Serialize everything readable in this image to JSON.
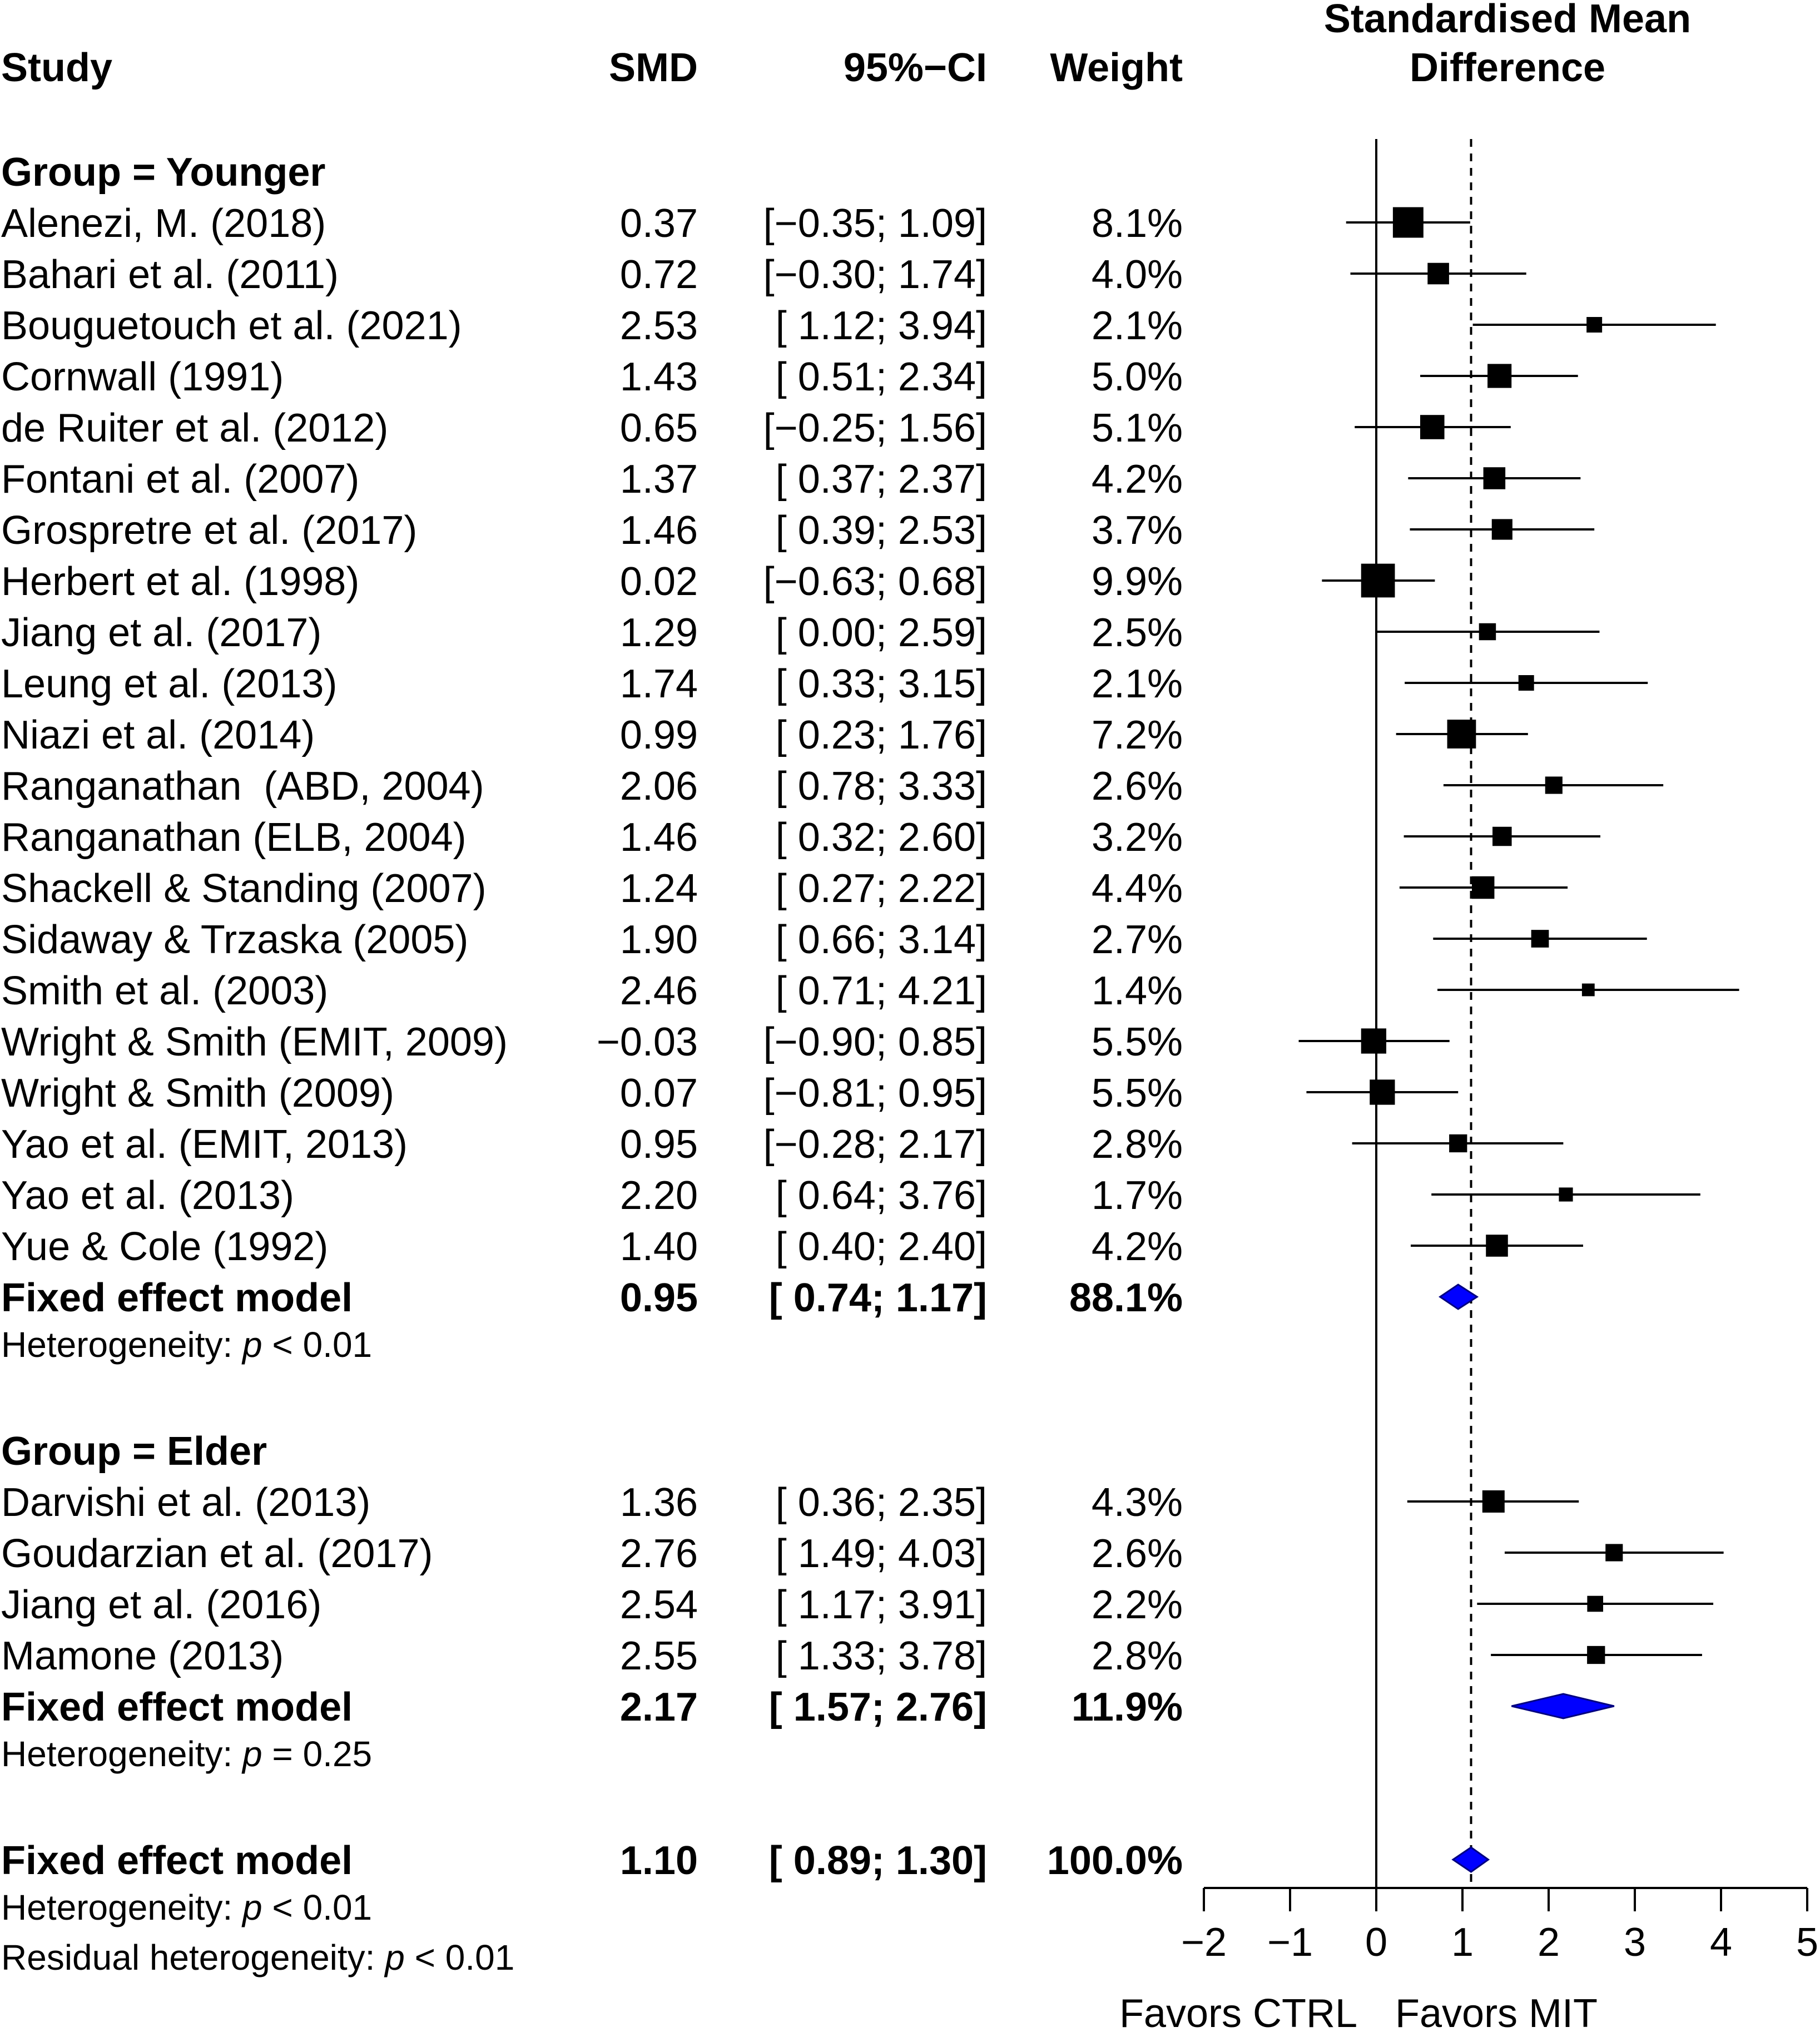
{
  "chart_data": {
    "type": "forest",
    "headers": {
      "study": "Study",
      "smd": "SMD",
      "ci": "95%−CI",
      "weight": "Weight",
      "plot_title_line1": "Standardised Mean",
      "plot_title_line2": "Difference"
    },
    "groups": [
      {
        "label": "Group = Younger",
        "studies": [
          {
            "name": "Alenezi, M. (2018)",
            "smd": 0.37,
            "lo": -0.35,
            "hi": 1.09,
            "smd_text": "0.37",
            "ci_text": "[−0.35; 1.09]",
            "weight_text": "8.1%",
            "weight": 8.1
          },
          {
            "name": "Bahari et al. (2011)",
            "smd": 0.72,
            "lo": -0.3,
            "hi": 1.74,
            "smd_text": "0.72",
            "ci_text": "[−0.30; 1.74]",
            "weight_text": "4.0%",
            "weight": 4.0
          },
          {
            "name": "Bouguetouch et al. (2021)",
            "smd": 2.53,
            "lo": 1.12,
            "hi": 3.94,
            "smd_text": "2.53",
            "ci_text": "[ 1.12; 3.94]",
            "weight_text": "2.1%",
            "weight": 2.1
          },
          {
            "name": "Cornwall (1991)",
            "smd": 1.43,
            "lo": 0.51,
            "hi": 2.34,
            "smd_text": "1.43",
            "ci_text": "[ 0.51; 2.34]",
            "weight_text": "5.0%",
            "weight": 5.0
          },
          {
            "name": "de Ruiter et al. (2012)",
            "smd": 0.65,
            "lo": -0.25,
            "hi": 1.56,
            "smd_text": "0.65",
            "ci_text": "[−0.25; 1.56]",
            "weight_text": "5.1%",
            "weight": 5.1
          },
          {
            "name": "Fontani et al. (2007)",
            "smd": 1.37,
            "lo": 0.37,
            "hi": 2.37,
            "smd_text": "1.37",
            "ci_text": "[ 0.37; 2.37]",
            "weight_text": "4.2%",
            "weight": 4.2
          },
          {
            "name": "Grospretre et al. (2017)",
            "smd": 1.46,
            "lo": 0.39,
            "hi": 2.53,
            "smd_text": "1.46",
            "ci_text": "[ 0.39; 2.53]",
            "weight_text": "3.7%",
            "weight": 3.7
          },
          {
            "name": "Herbert et al. (1998)",
            "smd": 0.02,
            "lo": -0.63,
            "hi": 0.68,
            "smd_text": "0.02",
            "ci_text": "[−0.63; 0.68]",
            "weight_text": "9.9%",
            "weight": 9.9
          },
          {
            "name": "Jiang et al. (2017)",
            "smd": 1.29,
            "lo": 0.0,
            "hi": 2.59,
            "smd_text": "1.29",
            "ci_text": "[ 0.00; 2.59]",
            "weight_text": "2.5%",
            "weight": 2.5
          },
          {
            "name": "Leung et al. (2013)",
            "smd": 1.74,
            "lo": 0.33,
            "hi": 3.15,
            "smd_text": "1.74",
            "ci_text": "[ 0.33; 3.15]",
            "weight_text": "2.1%",
            "weight": 2.1
          },
          {
            "name": "Niazi et al. (2014)",
            "smd": 0.99,
            "lo": 0.23,
            "hi": 1.76,
            "smd_text": "0.99",
            "ci_text": "[ 0.23; 1.76]",
            "weight_text": "7.2%",
            "weight": 7.2
          },
          {
            "name": "Ranganathan  (ABD, 2004)",
            "smd": 2.06,
            "lo": 0.78,
            "hi": 3.33,
            "smd_text": "2.06",
            "ci_text": "[ 0.78; 3.33]",
            "weight_text": "2.6%",
            "weight": 2.6
          },
          {
            "name": "Ranganathan (ELB, 2004)",
            "smd": 1.46,
            "lo": 0.32,
            "hi": 2.6,
            "smd_text": "1.46",
            "ci_text": "[ 0.32; 2.60]",
            "weight_text": "3.2%",
            "weight": 3.2
          },
          {
            "name": "Shackell & Standing (2007)",
            "smd": 1.24,
            "lo": 0.27,
            "hi": 2.22,
            "smd_text": "1.24",
            "ci_text": "[ 0.27; 2.22]",
            "weight_text": "4.4%",
            "weight": 4.4
          },
          {
            "name": "Sidaway & Trzaska (2005)",
            "smd": 1.9,
            "lo": 0.66,
            "hi": 3.14,
            "smd_text": "1.90",
            "ci_text": "[ 0.66; 3.14]",
            "weight_text": "2.7%",
            "weight": 2.7
          },
          {
            "name": "Smith et al. (2003)",
            "smd": 2.46,
            "lo": 0.71,
            "hi": 4.21,
            "smd_text": "2.46",
            "ci_text": "[ 0.71; 4.21]",
            "weight_text": "1.4%",
            "weight": 1.4
          },
          {
            "name": "Wright & Smith (EMIT, 2009)",
            "smd": -0.03,
            "lo": -0.9,
            "hi": 0.85,
            "smd_text": "−0.03",
            "ci_text": "[−0.90; 0.85]",
            "weight_text": "5.5%",
            "weight": 5.5
          },
          {
            "name": "Wright & Smith (2009)",
            "smd": 0.07,
            "lo": -0.81,
            "hi": 0.95,
            "smd_text": "0.07",
            "ci_text": "[−0.81; 0.95]",
            "weight_text": "5.5%",
            "weight": 5.5
          },
          {
            "name": "Yao et al. (EMIT, 2013)",
            "smd": 0.95,
            "lo": -0.28,
            "hi": 2.17,
            "smd_text": "0.95",
            "ci_text": "[−0.28; 2.17]",
            "weight_text": "2.8%",
            "weight": 2.8
          },
          {
            "name": "Yao et al. (2013)",
            "smd": 2.2,
            "lo": 0.64,
            "hi": 3.76,
            "smd_text": "2.20",
            "ci_text": "[ 0.64; 3.76]",
            "weight_text": "1.7%",
            "weight": 1.7
          },
          {
            "name": "Yue & Cole (1992)",
            "smd": 1.4,
            "lo": 0.4,
            "hi": 2.4,
            "smd_text": "1.40",
            "ci_text": "[ 0.40; 2.40]",
            "weight_text": "4.2%",
            "weight": 4.2
          }
        ],
        "summary": {
          "name": "Fixed effect model",
          "smd": 0.95,
          "lo": 0.74,
          "hi": 1.17,
          "smd_text": "0.95",
          "ci_text": "[ 0.74; 1.17]",
          "weight_text": "88.1%"
        },
        "heterogeneity": {
          "prefix": "Heterogeneity: ",
          "p": "p",
          "rest": " < 0.01"
        }
      },
      {
        "label": "Group = Elder",
        "studies": [
          {
            "name": "Darvishi et al. (2013)",
            "smd": 1.36,
            "lo": 0.36,
            "hi": 2.35,
            "smd_text": "1.36",
            "ci_text": "[ 0.36; 2.35]",
            "weight_text": "4.3%",
            "weight": 4.3
          },
          {
            "name": "Goudarzian et al. (2017)",
            "smd": 2.76,
            "lo": 1.49,
            "hi": 4.03,
            "smd_text": "2.76",
            "ci_text": "[ 1.49; 4.03]",
            "weight_text": "2.6%",
            "weight": 2.6
          },
          {
            "name": "Jiang et al. (2016)",
            "smd": 2.54,
            "lo": 1.17,
            "hi": 3.91,
            "smd_text": "2.54",
            "ci_text": "[ 1.17; 3.91]",
            "weight_text": "2.2%",
            "weight": 2.2
          },
          {
            "name": "Mamone (2013)",
            "smd": 2.55,
            "lo": 1.33,
            "hi": 3.78,
            "smd_text": "2.55",
            "ci_text": "[ 1.33; 3.78]",
            "weight_text": "2.8%",
            "weight": 2.8
          }
        ],
        "summary": {
          "name": "Fixed effect model",
          "smd": 2.17,
          "lo": 1.57,
          "hi": 2.76,
          "smd_text": "2.17",
          "ci_text": "[ 1.57; 2.76]",
          "weight_text": "11.9%"
        },
        "heterogeneity": {
          "prefix": "Heterogeneity: ",
          "p": "p",
          "rest": " = 0.25"
        }
      }
    ],
    "overall": {
      "name": "Fixed effect model",
      "smd": 1.1,
      "lo": 0.89,
      "hi": 1.3,
      "smd_text": "1.10",
      "ci_text": "[ 0.89; 1.30]",
      "weight_text": "100.0%",
      "heterogeneity": {
        "prefix": "Heterogeneity: ",
        "p": "p",
        "rest": " < 0.01"
      },
      "residual": {
        "prefix": "Residual heterogeneity: ",
        "p": "p",
        "rest": " < 0.01"
      }
    },
    "axis": {
      "xlim": [
        -2,
        5
      ],
      "ticks": [
        -2,
        -1,
        0,
        1,
        2,
        3,
        4,
        5
      ],
      "tick_labels": [
        "−2",
        "−1",
        "0",
        "1",
        "2",
        "3",
        "4",
        "5"
      ],
      "reference_line": 0,
      "overall_line": 1.1,
      "label_left": "Favors CTRL",
      "label_right": "Favors MIT"
    },
    "colors": {
      "marker": "#000000",
      "diamond_fill": "#0000ff",
      "diamond_stroke": "#000080"
    }
  }
}
